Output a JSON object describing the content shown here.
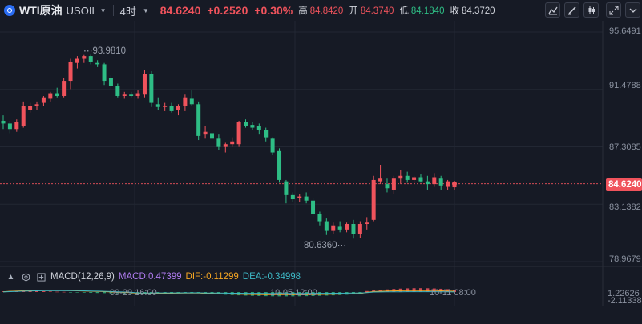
{
  "header": {
    "symbol_name": "WTI原油",
    "symbol_code": "USOIL",
    "period": "4时",
    "last": "84.6240",
    "change": "+0.2520",
    "change_pct": "+0.30%",
    "stats": [
      {
        "label": "高",
        "value": "84.8420",
        "color": "up"
      },
      {
        "label": "开",
        "value": "84.3740",
        "color": "up"
      },
      {
        "label": "低",
        "value": "84.1840",
        "color": "down"
      },
      {
        "label": "收",
        "value": "84.3720",
        "color": "neutral"
      }
    ]
  },
  "toolbar": {
    "icons": [
      "line-chart-icon",
      "draw-pen-icon",
      "candlestick-type-icon",
      "fullscreen-icon",
      "collapse-icon"
    ]
  },
  "colors": {
    "up": "#f0535c",
    "down": "#2ebd85",
    "bg": "#161a25",
    "grid": "#222733",
    "dif": "#f5a623",
    "dea": "#3db7c4",
    "macd_label": "#b07cf0"
  },
  "chart_data": {
    "type": "candlestick",
    "y_ticks": [
      "95.6491",
      "91.4788",
      "87.3085",
      "83.1382",
      "78.9679"
    ],
    "x_ticks": [
      "09-29 16:00",
      "10-05 12:00",
      "10-11 08:00"
    ],
    "high_annotation": "93.9810",
    "low_annotation": "80.6360",
    "last_price_label": "84.6240",
    "ylim": [
      78.9679,
      95.6491
    ],
    "candles": [
      [
        89.2,
        89.6,
        88.6,
        89.0
      ],
      [
        89.0,
        89.2,
        88.3,
        88.6
      ],
      [
        88.6,
        89.3,
        88.4,
        89.1
      ],
      [
        88.8,
        90.6,
        88.7,
        90.3
      ],
      [
        90.0,
        90.5,
        89.8,
        90.3
      ],
      [
        90.3,
        90.6,
        90.0,
        90.4
      ],
      [
        90.5,
        91.0,
        90.3,
        90.9
      ],
      [
        90.8,
        91.3,
        90.6,
        91.2
      ],
      [
        91.2,
        91.6,
        90.9,
        91.0
      ],
      [
        91.0,
        92.3,
        90.9,
        92.1
      ],
      [
        92.1,
        93.7,
        91.5,
        93.5
      ],
      [
        93.4,
        93.9,
        93.0,
        93.7
      ],
      [
        93.7,
        93.98,
        93.4,
        93.9
      ],
      [
        93.9,
        94.0,
        93.3,
        93.5
      ],
      [
        93.4,
        93.6,
        93.1,
        93.3
      ],
      [
        93.3,
        93.4,
        91.8,
        92.1
      ],
      [
        92.3,
        92.5,
        91.5,
        91.7
      ],
      [
        91.7,
        91.9,
        90.9,
        91.0
      ],
      [
        91.0,
        91.3,
        90.8,
        91.1
      ],
      [
        91.1,
        91.3,
        90.9,
        91.0
      ],
      [
        91.0,
        91.4,
        90.8,
        91.2
      ],
      [
        91.1,
        92.9,
        90.9,
        92.6
      ],
      [
        92.6,
        92.8,
        90.2,
        90.5
      ],
      [
        90.4,
        90.9,
        90.0,
        90.2
      ],
      [
        90.2,
        90.5,
        89.9,
        90.3
      ],
      [
        90.3,
        90.5,
        89.8,
        89.9
      ],
      [
        90.0,
        90.4,
        89.6,
        90.3
      ],
      [
        90.3,
        91.1,
        89.9,
        90.9
      ],
      [
        90.8,
        91.4,
        90.3,
        90.4
      ],
      [
        90.4,
        90.6,
        87.8,
        88.1
      ],
      [
        88.2,
        88.8,
        87.9,
        88.4
      ],
      [
        88.3,
        88.5,
        87.7,
        87.9
      ],
      [
        87.9,
        88.2,
        87.1,
        87.3
      ],
      [
        87.3,
        87.6,
        86.9,
        87.5
      ],
      [
        87.5,
        88.0,
        87.3,
        87.7
      ],
      [
        87.5,
        89.2,
        87.3,
        89.1
      ],
      [
        89.1,
        89.3,
        88.7,
        88.8
      ],
      [
        88.9,
        89.1,
        88.5,
        88.7
      ],
      [
        88.8,
        89.0,
        88.2,
        88.5
      ],
      [
        88.5,
        88.7,
        87.7,
        88.0
      ],
      [
        87.9,
        88.0,
        86.7,
        86.9
      ],
      [
        87.0,
        87.2,
        84.7,
        84.9
      ],
      [
        84.8,
        84.9,
        83.2,
        83.8
      ],
      [
        83.8,
        84.0,
        83.3,
        83.5
      ],
      [
        83.6,
        83.9,
        83.3,
        83.7
      ],
      [
        83.7,
        84.0,
        83.2,
        83.4
      ],
      [
        83.4,
        83.6,
        82.2,
        82.4
      ],
      [
        82.4,
        82.6,
        81.6,
        81.9
      ],
      [
        81.9,
        82.1,
        80.9,
        81.2
      ],
      [
        81.2,
        81.8,
        81.0,
        81.6
      ],
      [
        81.5,
        81.9,
        81.1,
        81.3
      ],
      [
        81.3,
        81.8,
        81.1,
        81.7
      ],
      [
        81.7,
        82.0,
        80.64,
        81.0
      ],
      [
        81.0,
        81.9,
        80.7,
        81.7
      ],
      [
        81.7,
        82.2,
        81.3,
        81.8
      ],
      [
        82.0,
        85.2,
        81.9,
        84.9
      ],
      [
        84.8,
        86.0,
        84.6,
        85.0
      ],
      [
        84.6,
        85.0,
        84.0,
        84.3
      ],
      [
        84.2,
        85.2,
        83.9,
        85.0
      ],
      [
        85.0,
        85.6,
        84.6,
        85.2
      ],
      [
        85.2,
        85.5,
        84.7,
        84.9
      ],
      [
        84.9,
        85.2,
        84.6,
        85.1
      ],
      [
        85.1,
        85.3,
        84.7,
        84.8
      ],
      [
        84.8,
        85.2,
        84.2,
        84.6
      ],
      [
        84.6,
        85.4,
        84.4,
        85.1
      ],
      [
        85.0,
        85.2,
        84.2,
        84.5
      ],
      [
        84.4,
        84.9,
        84.2,
        84.8
      ],
      [
        84.37,
        84.84,
        84.18,
        84.62
      ]
    ]
  },
  "macd": {
    "label": "MACD(12,26,9)",
    "macd_value": "MACD:0.47399",
    "dif_value": "DIF:-0.11299",
    "dea_value": "DEA:-0.34998",
    "right_ticks": [
      "1.22626",
      "-2.11338"
    ],
    "icons": [
      "collapse-triangle-icon",
      "settings-icon",
      "add-indicator-icon"
    ]
  }
}
